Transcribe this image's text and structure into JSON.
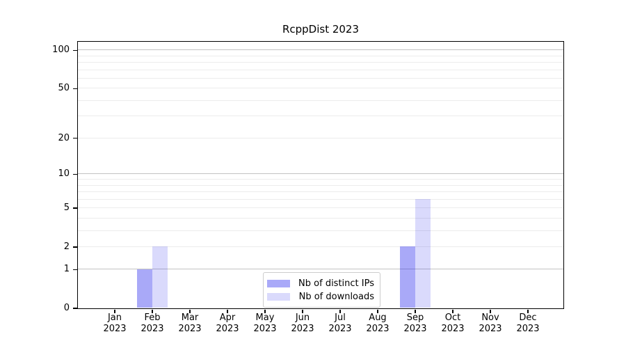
{
  "figure": {
    "background_color": "#ffffff",
    "spine_color": "#000000",
    "decade_gridline_color": "#c3c3c3",
    "minor_gridline_color": "#ececec"
  },
  "chart_data": {
    "type": "bar",
    "title": "RcppDist 2023",
    "xlabel": "",
    "ylabel": "",
    "year": "2023",
    "categories": [
      "Jan",
      "Feb",
      "Mar",
      "Apr",
      "May",
      "Jun",
      "Jul",
      "Aug",
      "Sep",
      "Oct",
      "Nov",
      "Dec"
    ],
    "series": [
      {
        "name": "Nb of distinct IPs",
        "color": "rgba(10,10,235,0.35)",
        "values": [
          0,
          1,
          0,
          0,
          0,
          0,
          0,
          0,
          2,
          0,
          0,
          0
        ]
      },
      {
        "name": "Nb of downloads",
        "color": "rgba(10,10,235,0.15)",
        "values": [
          0,
          2,
          0,
          0,
          0,
          0,
          0,
          0,
          6,
          0,
          0,
          0
        ]
      }
    ],
    "yticks": [
      0,
      1,
      2,
      5,
      10,
      20,
      50,
      100
    ],
    "gridlines": {
      "decade": [
        1,
        10,
        100
      ],
      "minor": [
        2,
        3,
        4,
        5,
        6,
        7,
        8,
        9,
        20,
        30,
        40,
        50,
        60,
        70,
        80,
        90
      ]
    },
    "scale": "log1p",
    "ylim": [
      0,
      117
    ],
    "grid": true,
    "legend_position": "lower center"
  }
}
